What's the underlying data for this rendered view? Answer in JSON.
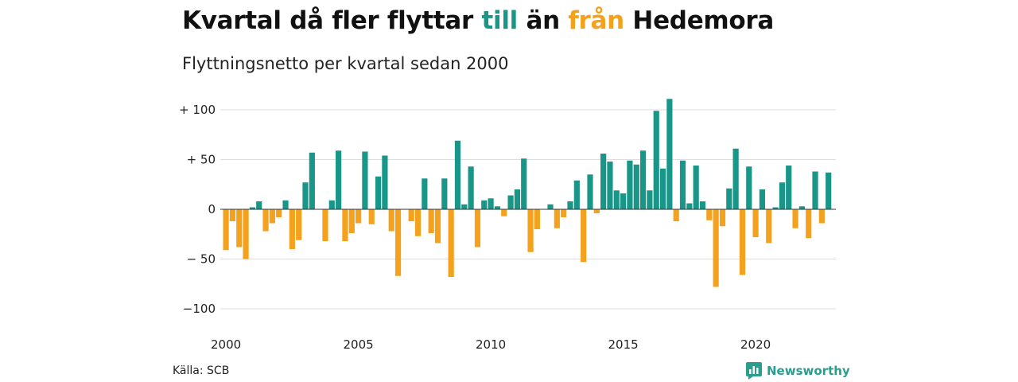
{
  "title": {
    "part1": "Kvartal då fler flyttar ",
    "till": "till",
    "part2": " än ",
    "fran": "från",
    "part3": " Hedemora"
  },
  "subtitle": "Flyttningsnetto per kvartal sedan 2000",
  "source": "Källa: SCB",
  "brand": {
    "name": "Newsworthy",
    "icon": "newsworthy-logo-icon"
  },
  "colors": {
    "positive": "#1a9688",
    "negative": "#f4a21e",
    "brand": "#2a9d8f"
  },
  "chart_data": {
    "type": "bar",
    "x_start": "2000 Q1",
    "x_tick_labels": [
      "2000",
      "2005",
      "2010",
      "2015",
      "2020"
    ],
    "y_tick_labels": [
      "+ 100",
      "+  50",
      "0",
      "− 50",
      "−100"
    ],
    "y_ticks": [
      100,
      50,
      0,
      -50,
      -100
    ],
    "ylim": [
      -100,
      100
    ],
    "grid": true,
    "values": [
      -41,
      -12,
      -38,
      -50,
      2,
      8,
      -22,
      -14,
      -8,
      9,
      -40,
      -31,
      27,
      57,
      0,
      -32,
      9,
      59,
      -32,
      -24,
      -14,
      58,
      -15,
      33,
      54,
      -22,
      -67,
      0,
      -12,
      -27,
      31,
      -24,
      -34,
      31,
      -68,
      69,
      5,
      43,
      -38,
      9,
      11,
      3,
      -7,
      14,
      20,
      51,
      -43,
      -20,
      0,
      5,
      -19,
      -8,
      8,
      29,
      -53,
      35,
      -4,
      56,
      48,
      19,
      16,
      49,
      45,
      59,
      19,
      99,
      41,
      111,
      -12,
      49,
      6,
      44,
      8,
      -11,
      -78,
      -17,
      21,
      61,
      -66,
      43,
      -28,
      20,
      -34,
      2,
      27,
      44,
      -19,
      3,
      -29,
      38,
      -14,
      37
    ]
  }
}
